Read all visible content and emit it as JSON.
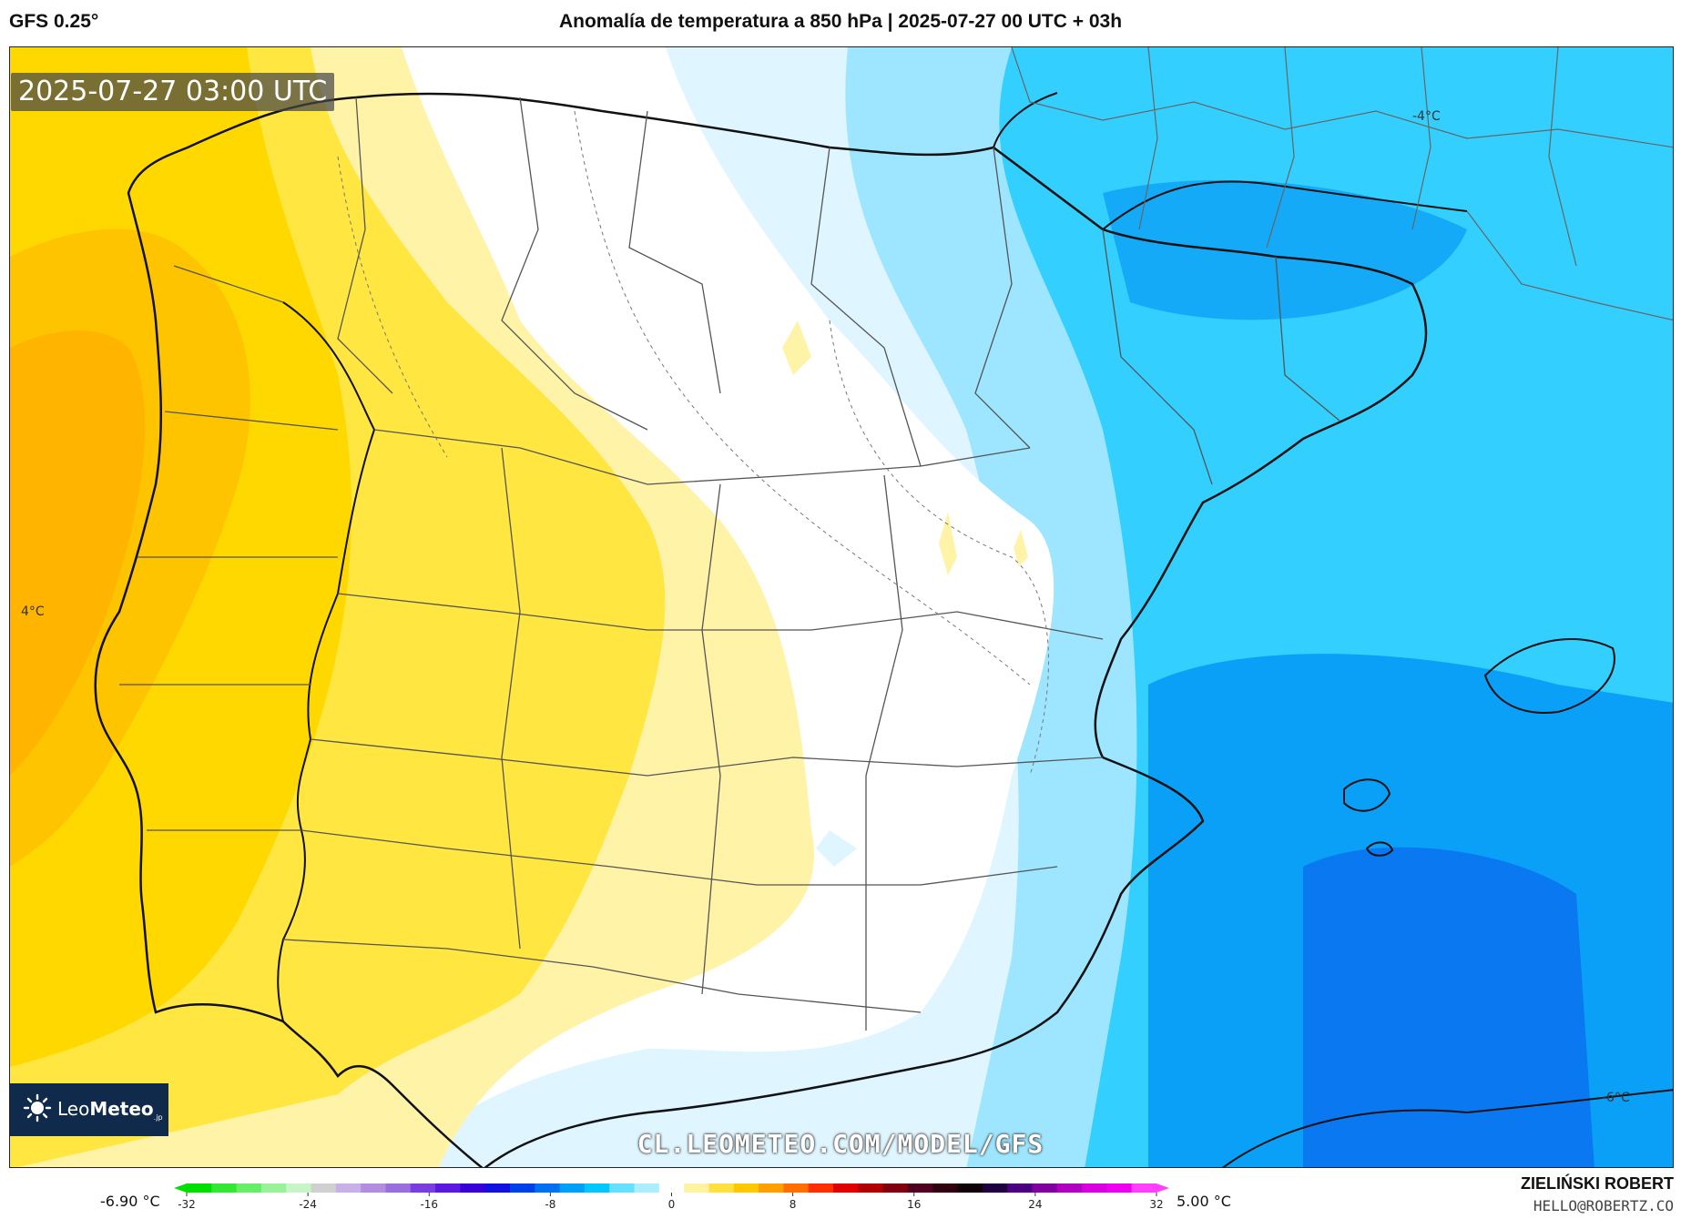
{
  "header": {
    "model": "GFS 0.25°",
    "title": "Anomalía de temperatura a 850 hPa | 2025-07-27 00 UTC + 03h"
  },
  "map": {
    "timestamp": "2025-07-27 03:00 UTC",
    "iso_labels": [
      "4°C",
      "-4°C",
      "-6°C"
    ],
    "url": "CL.LEOMETEO.COM/MODEL/GFS"
  },
  "logo": {
    "name_part1": "Leo",
    "name_part2": "Meteo",
    "suffix": ".jp"
  },
  "colorbar": {
    "min_label": "-6.90 °C",
    "max_label": "5.00 °C",
    "ticks": [
      "-32",
      "-24",
      "-16",
      "-8",
      "0",
      "8",
      "16",
      "24",
      "32"
    ],
    "range": [
      -32,
      32
    ],
    "colors": [
      "#00e000",
      "#33e833",
      "#66ee66",
      "#99f299",
      "#c8f5c8",
      "#d0d0d0",
      "#c8b0e8",
      "#b38ee0",
      "#9b6ee0",
      "#7a3ee0",
      "#5a18e0",
      "#3a00d8",
      "#1010e0",
      "#0040e8",
      "#0070f0",
      "#00a0f8",
      "#00c8ff",
      "#66e0ff",
      "#aaeeff",
      "#ffffff",
      "#fff3a0",
      "#ffe040",
      "#ffc800",
      "#ffa000",
      "#ff7000",
      "#ff3000",
      "#e00000",
      "#b00000",
      "#800010",
      "#500020",
      "#300010",
      "#100008",
      "#200040",
      "#4a0080",
      "#8000a0",
      "#b000c0",
      "#d800e0",
      "#f000f0",
      "#ff40ff"
    ]
  },
  "author": {
    "name": "ZIELIŃSKI ROBERT",
    "email": "HELLO@ROBERTZ.CO"
  },
  "colors": {
    "frame": "#222222",
    "logo_bg": "#0f2a4a",
    "warm": "#ffd900",
    "cold": "#00c8ff"
  }
}
